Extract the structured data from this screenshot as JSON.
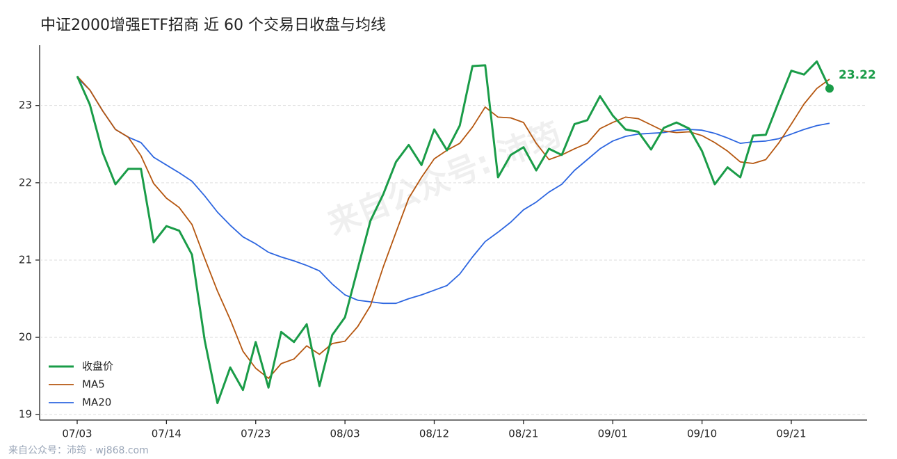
{
  "chart_data": {
    "type": "line",
    "title": "中证2000增强ETF招商 近 60 个交易日收盘与均线",
    "watermark": "来自公众号: 沛筠",
    "footer": "来自公众号：沛筠 · wj868.com",
    "categories": [
      "07/03",
      null,
      null,
      null,
      null,
      null,
      null,
      "07/14",
      null,
      null,
      null,
      null,
      null,
      null,
      "07/23",
      null,
      null,
      null,
      null,
      null,
      null,
      "08/03",
      null,
      null,
      null,
      null,
      null,
      null,
      "08/12",
      null,
      null,
      null,
      null,
      null,
      null,
      "08/21",
      null,
      null,
      null,
      null,
      null,
      null,
      "09/01",
      null,
      null,
      null,
      null,
      null,
      null,
      "09/10",
      null,
      null,
      null,
      null,
      null,
      null,
      "09/21",
      null,
      null,
      null
    ],
    "series": [
      {
        "name": "收盘价",
        "color": "#1a9c48",
        "values": [
          23.38,
          23.01,
          22.39,
          21.98,
          22.18,
          22.18,
          21.23,
          21.44,
          21.38,
          21.07,
          19.96,
          19.15,
          19.61,
          19.32,
          19.94,
          19.35,
          20.07,
          19.94,
          20.17,
          19.37,
          20.03,
          20.26,
          20.89,
          21.51,
          21.85,
          22.27,
          22.49,
          22.23,
          22.69,
          22.42,
          22.74,
          23.51,
          23.52,
          22.07,
          22.36,
          22.46,
          22.16,
          22.44,
          22.36,
          22.76,
          22.81,
          23.12,
          22.87,
          22.69,
          22.66,
          22.43,
          22.71,
          22.78,
          22.7,
          22.41,
          21.98,
          22.2,
          22.07,
          22.61,
          22.62,
          23.04,
          23.45,
          23.4,
          23.57,
          23.22
        ]
      },
      {
        "name": "MA5",
        "color": "#b5560f",
        "values": [
          23.38,
          23.2,
          22.93,
          22.69,
          22.59,
          22.35,
          21.99,
          21.8,
          21.68,
          21.46,
          21.02,
          20.6,
          20.23,
          19.82,
          19.6,
          19.47,
          19.66,
          19.72,
          19.89,
          19.78,
          19.92,
          19.95,
          20.14,
          20.41,
          20.91,
          21.36,
          21.8,
          22.07,
          22.31,
          22.42,
          22.51,
          22.72,
          22.98,
          22.85,
          22.84,
          22.78,
          22.51,
          22.3,
          22.36,
          22.44,
          22.51,
          22.7,
          22.78,
          22.85,
          22.83,
          22.75,
          22.67,
          22.65,
          22.66,
          22.61,
          22.52,
          22.41,
          22.27,
          22.25,
          22.3,
          22.51,
          22.76,
          23.02,
          23.22,
          23.34
        ]
      },
      {
        "name": "MA20",
        "color": "#2d66e0",
        "values": [
          23.36,
          23.2,
          22.93,
          22.69,
          22.59,
          22.52,
          22.33,
          22.23,
          22.13,
          22.02,
          21.83,
          21.62,
          21.45,
          21.3,
          21.21,
          21.1,
          21.04,
          20.99,
          20.93,
          20.86,
          20.69,
          20.55,
          20.48,
          20.46,
          20.44,
          20.44,
          20.5,
          20.55,
          20.61,
          20.67,
          20.82,
          21.04,
          21.24,
          21.36,
          21.49,
          21.65,
          21.75,
          21.88,
          21.98,
          22.16,
          22.3,
          22.44,
          22.54,
          22.6,
          22.63,
          22.64,
          22.65,
          22.68,
          22.69,
          22.68,
          22.64,
          22.58,
          22.51,
          22.53,
          22.54,
          22.57,
          22.63,
          22.69,
          22.74,
          22.77
        ]
      }
    ],
    "ylim": [
      18.93,
      23.78
    ],
    "yticks": [
      19,
      20,
      21,
      22,
      23
    ],
    "grid": true,
    "legend": "lower left"
  }
}
